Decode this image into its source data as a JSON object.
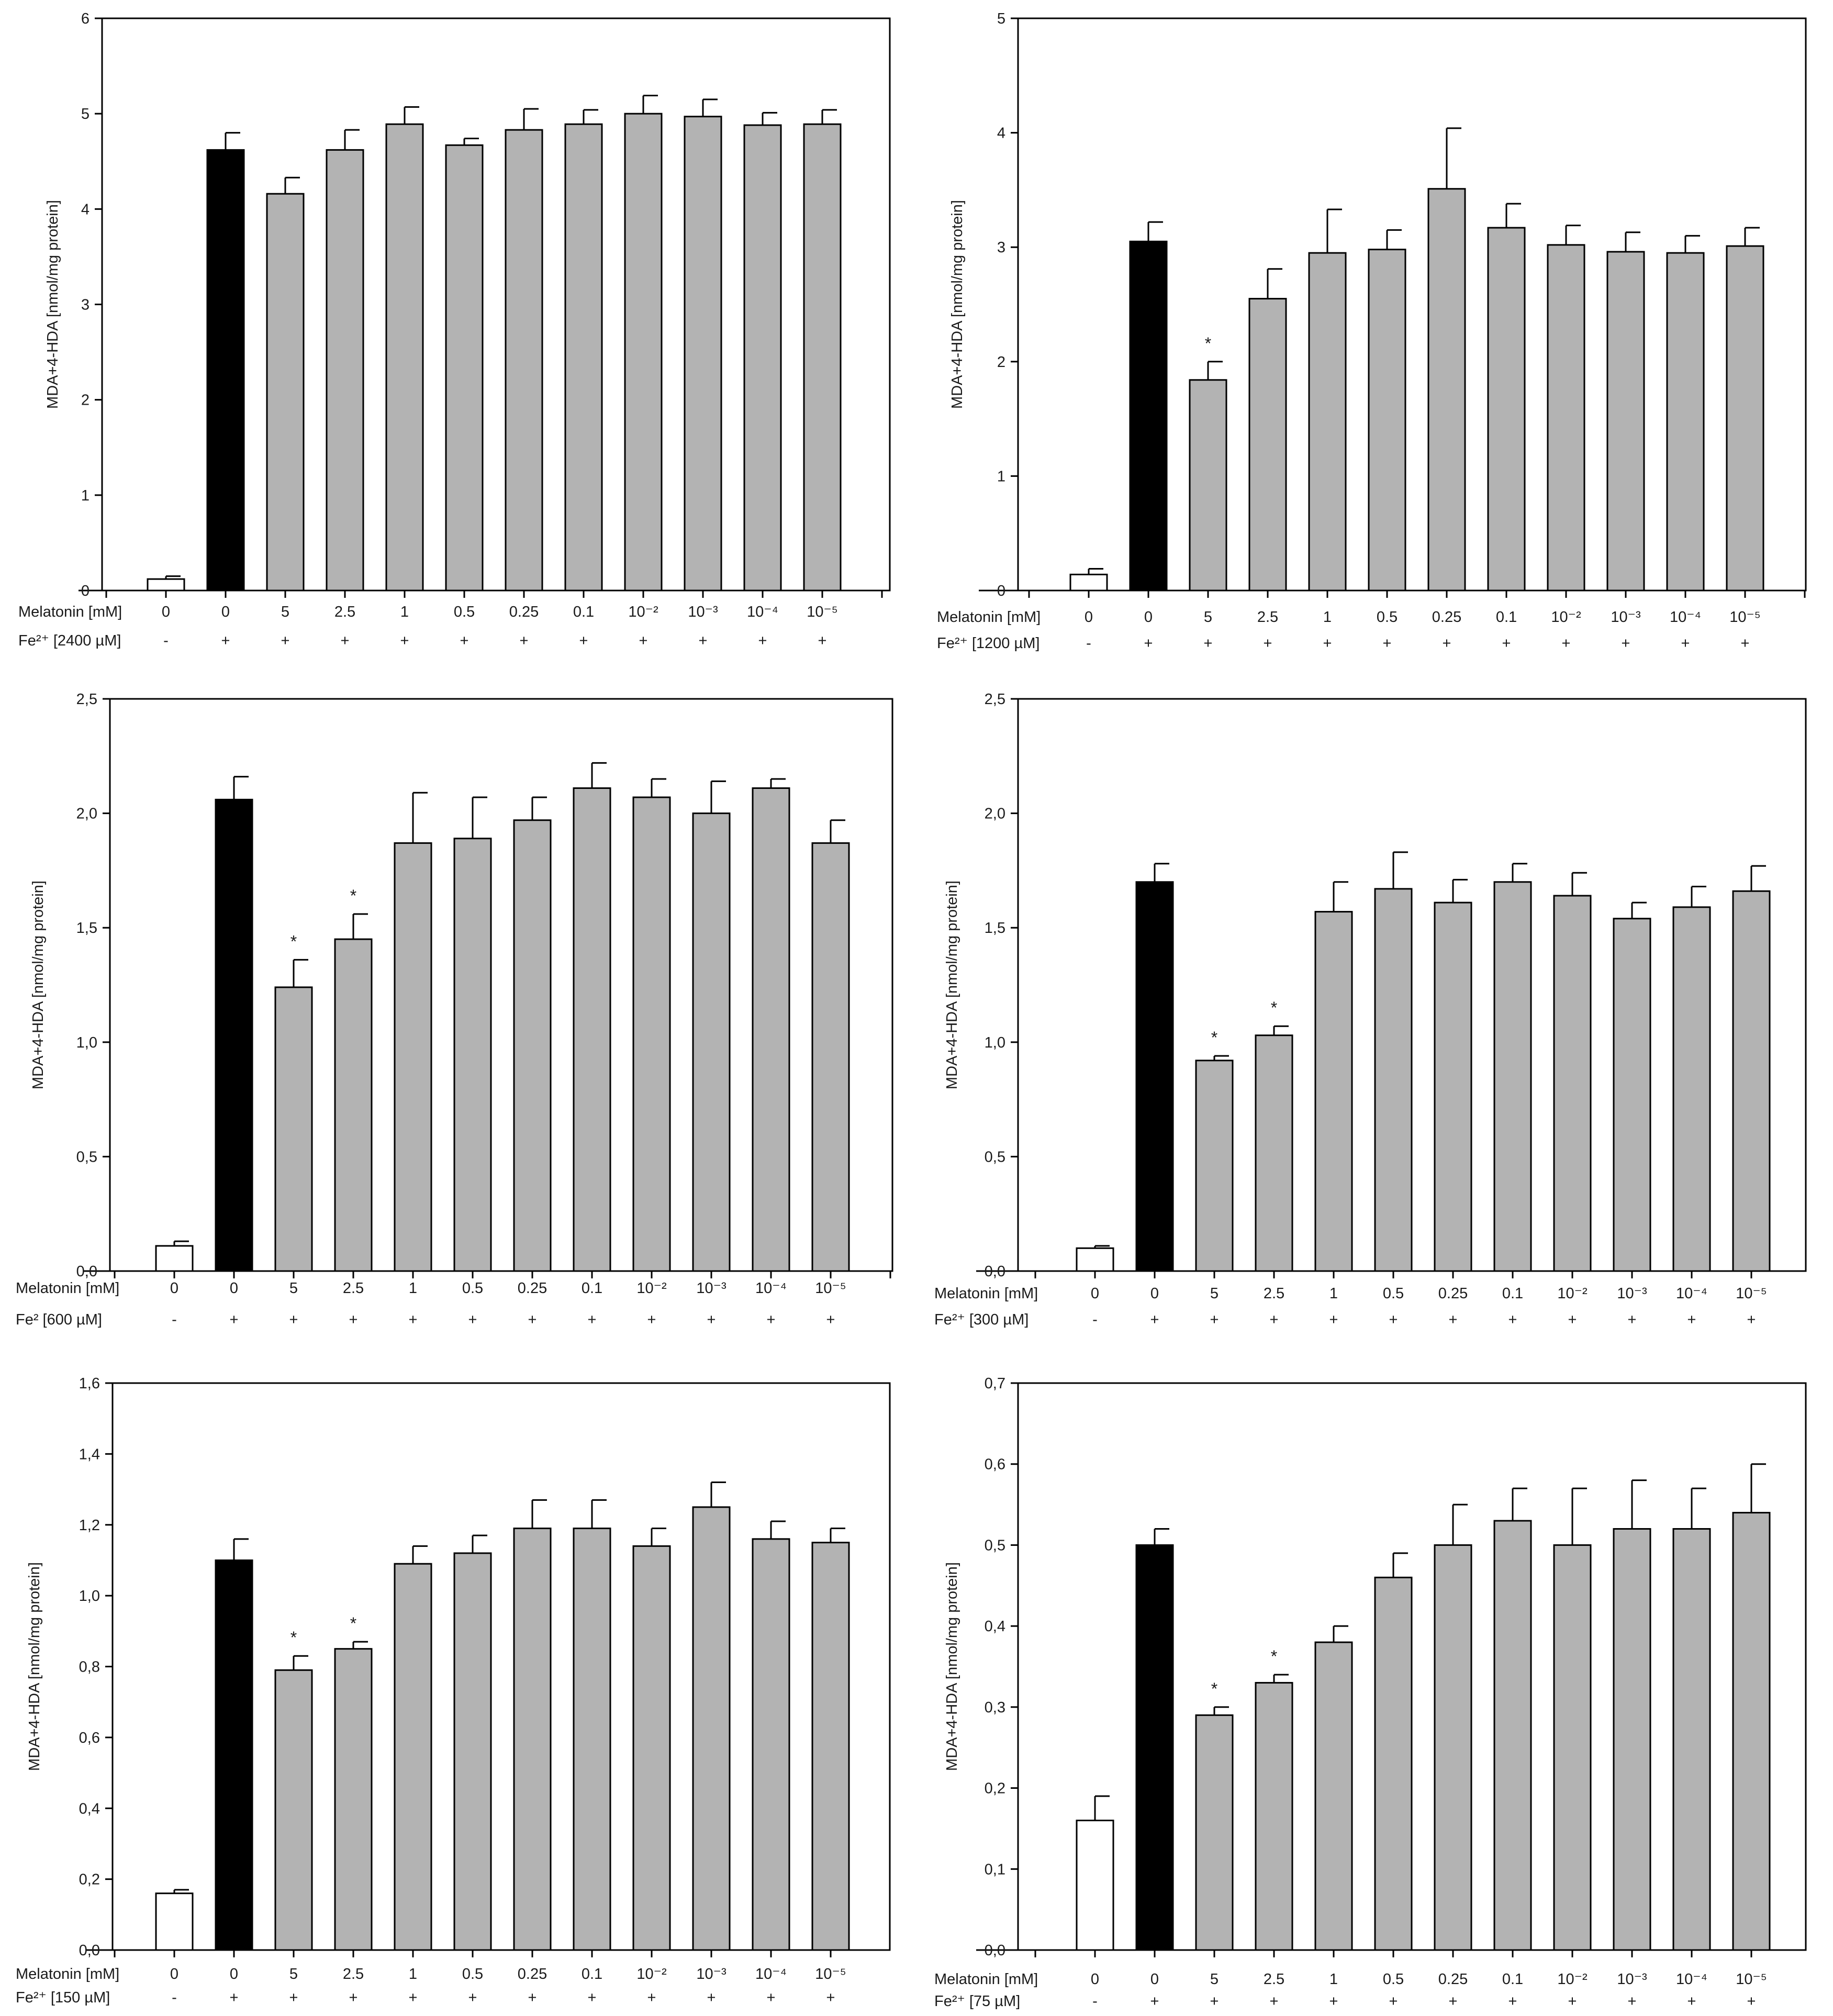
{
  "chart_data": [
    {
      "type": "bar",
      "ylabel": "MDA+4-HDA [nmol/mg protein]",
      "ylim": [
        0,
        6
      ],
      "yticks": [
        "0",
        "1",
        "2",
        "3",
        "4",
        "5",
        "6"
      ],
      "row1_label": "Melatonin [mM]",
      "row2_label": "Fe²⁺ [2400 µM]",
      "categories": [
        "0",
        "0",
        "5",
        "2.5",
        "1",
        "0.5",
        "0.25",
        "0.1",
        "10⁻²",
        "10⁻³",
        "10⁻⁴",
        "10⁻⁵"
      ],
      "fe_present": [
        "-",
        "+",
        "+",
        "+",
        "+",
        "+",
        "+",
        "+",
        "+",
        "+",
        "+",
        "+"
      ],
      "values": [
        0.12,
        4.62,
        4.16,
        4.62,
        4.89,
        4.67,
        4.83,
        4.89,
        5.0,
        4.97,
        4.88,
        4.89
      ],
      "errors": [
        0.03,
        0.18,
        0.17,
        0.21,
        0.18,
        0.07,
        0.22,
        0.15,
        0.19,
        0.18,
        0.13,
        0.15
      ],
      "significance": [
        "",
        "",
        "",
        "",
        "",
        "",
        "",
        "",
        "",
        "",
        "",
        ""
      ],
      "bar_colors": [
        "#ffffff",
        "#000000",
        "#b3b3b3",
        "#b3b3b3",
        "#b3b3b3",
        "#b3b3b3",
        "#b3b3b3",
        "#b3b3b3",
        "#b3b3b3",
        "#b3b3b3",
        "#b3b3b3",
        "#b3b3b3"
      ]
    },
    {
      "type": "bar",
      "ylabel": "MDA+4-HDA [nmol/mg protein]",
      "ylim": [
        0,
        5
      ],
      "yticks": [
        "0",
        "1",
        "2",
        "3",
        "4",
        "5"
      ],
      "row1_label": "Melatonin [mM]",
      "row2_label": "Fe²⁺ [1200 µM]",
      "categories": [
        "0",
        "0",
        "5",
        "2.5",
        "1",
        "0.5",
        "0.25",
        "0.1",
        "10⁻²",
        "10⁻³",
        "10⁻⁴",
        "10⁻⁵"
      ],
      "fe_present": [
        "-",
        "+",
        "+",
        "+",
        "+",
        "+",
        "+",
        "+",
        "+",
        "+",
        "+",
        "+"
      ],
      "values": [
        0.14,
        3.05,
        1.84,
        2.55,
        2.95,
        2.98,
        3.51,
        3.17,
        3.02,
        2.96,
        2.95,
        3.01
      ],
      "errors": [
        0.05,
        0.17,
        0.16,
        0.26,
        0.38,
        0.17,
        0.53,
        0.21,
        0.17,
        0.17,
        0.15,
        0.16
      ],
      "significance": [
        "",
        "",
        "*",
        "",
        "",
        "",
        "",
        "",
        "",
        "",
        "",
        ""
      ],
      "bar_colors": [
        "#ffffff",
        "#000000",
        "#b3b3b3",
        "#b3b3b3",
        "#b3b3b3",
        "#b3b3b3",
        "#b3b3b3",
        "#b3b3b3",
        "#b3b3b3",
        "#b3b3b3",
        "#b3b3b3",
        "#b3b3b3"
      ]
    },
    {
      "type": "bar",
      "ylabel": "MDA+4-HDA [nmol/mg protein]",
      "ylim": [
        0,
        2.5
      ],
      "yticks": [
        "0,0",
        "0,5",
        "1,0",
        "1,5",
        "2,0",
        "2,5"
      ],
      "row1_label": "Melatonin [mM]",
      "row2_label": "Fe² [600 µM]",
      "categories": [
        "0",
        "0",
        "5",
        "2.5",
        "1",
        "0.5",
        "0.25",
        "0.1",
        "10⁻²",
        "10⁻³",
        "10⁻⁴",
        "10⁻⁵"
      ],
      "fe_present": [
        "-",
        "+",
        "+",
        "+",
        "+",
        "+",
        "+",
        "+",
        "+",
        "+",
        "+",
        "+"
      ],
      "values": [
        0.11,
        2.06,
        1.24,
        1.45,
        1.87,
        1.89,
        1.97,
        2.11,
        2.07,
        2.0,
        2.11,
        1.87
      ],
      "errors": [
        0.02,
        0.1,
        0.12,
        0.11,
        0.22,
        0.18,
        0.1,
        0.11,
        0.08,
        0.14,
        0.04,
        0.1
      ],
      "significance": [
        "",
        "",
        "*",
        "*",
        "",
        "",
        "",
        "",
        "",
        "",
        "",
        ""
      ],
      "bar_colors": [
        "#ffffff",
        "#000000",
        "#b3b3b3",
        "#b3b3b3",
        "#b3b3b3",
        "#b3b3b3",
        "#b3b3b3",
        "#b3b3b3",
        "#b3b3b3",
        "#b3b3b3",
        "#b3b3b3",
        "#b3b3b3"
      ]
    },
    {
      "type": "bar",
      "ylabel": "MDA+4-HDA [nmol/mg protein]",
      "ylim": [
        0,
        2.5
      ],
      "yticks": [
        "0,0",
        "0,5",
        "1,0",
        "1,5",
        "2,0",
        "2,5"
      ],
      "row1_label": "Melatonin [mM]",
      "row2_label": "Fe²⁺ [300 µM]",
      "categories": [
        "0",
        "0",
        "5",
        "2.5",
        "1",
        "0.5",
        "0.25",
        "0.1",
        "10⁻²",
        "10⁻³",
        "10⁻⁴",
        "10⁻⁵"
      ],
      "fe_present": [
        "-",
        "+",
        "+",
        "+",
        "+",
        "+",
        "+",
        "+",
        "+",
        "+",
        "+",
        "+"
      ],
      "values": [
        0.1,
        1.7,
        0.92,
        1.03,
        1.57,
        1.67,
        1.61,
        1.7,
        1.64,
        1.54,
        1.59,
        1.66
      ],
      "errors": [
        0.01,
        0.08,
        0.02,
        0.04,
        0.13,
        0.16,
        0.1,
        0.08,
        0.1,
        0.07,
        0.09,
        0.11
      ],
      "significance": [
        "",
        "",
        "*",
        "*",
        "",
        "",
        "",
        "",
        "",
        "",
        "",
        ""
      ],
      "bar_colors": [
        "#ffffff",
        "#000000",
        "#b3b3b3",
        "#b3b3b3",
        "#b3b3b3",
        "#b3b3b3",
        "#b3b3b3",
        "#b3b3b3",
        "#b3b3b3",
        "#b3b3b3",
        "#b3b3b3",
        "#b3b3b3"
      ]
    },
    {
      "type": "bar",
      "ylabel": "MDA+4-HDA [nmol/mg protein]",
      "ylim": [
        0,
        1.6
      ],
      "yticks": [
        "0,0",
        "0,2",
        "0,4",
        "0,6",
        "0,8",
        "1,0",
        "1,2",
        "1,4",
        "1,6"
      ],
      "row1_label": "Melatonin [mM]",
      "row2_label": "Fe²⁺ [150 µM]",
      "categories": [
        "0",
        "0",
        "5",
        "2.5",
        "1",
        "0.5",
        "0.25",
        "0.1",
        "10⁻²",
        "10⁻³",
        "10⁻⁴",
        "10⁻⁵"
      ],
      "fe_present": [
        "-",
        "+",
        "+",
        "+",
        "+",
        "+",
        "+",
        "+",
        "+",
        "+",
        "+",
        "+"
      ],
      "values": [
        0.16,
        1.1,
        0.79,
        0.85,
        1.09,
        1.12,
        1.19,
        1.19,
        1.14,
        1.25,
        1.16,
        1.15
      ],
      "errors": [
        0.01,
        0.06,
        0.04,
        0.02,
        0.05,
        0.05,
        0.08,
        0.08,
        0.05,
        0.07,
        0.05,
        0.04
      ],
      "significance": [
        "",
        "",
        "*",
        "*",
        "",
        "",
        "",
        "",
        "",
        "",
        "",
        ""
      ],
      "bar_colors": [
        "#ffffff",
        "#000000",
        "#b3b3b3",
        "#b3b3b3",
        "#b3b3b3",
        "#b3b3b3",
        "#b3b3b3",
        "#b3b3b3",
        "#b3b3b3",
        "#b3b3b3",
        "#b3b3b3",
        "#b3b3b3"
      ]
    },
    {
      "type": "bar",
      "ylabel": "MDA+4-HDA [nmol/mg protein]",
      "ylim": [
        0,
        0.7
      ],
      "yticks": [
        "0,0",
        "0,1",
        "0,2",
        "0,3",
        "0,4",
        "0,5",
        "0,6",
        "0,7"
      ],
      "row1_label": "Melatonin [mM]",
      "row2_label": "Fe²⁺ [75 µM]",
      "categories": [
        "0",
        "0",
        "5",
        "2.5",
        "1",
        "0.5",
        "0.25",
        "0.1",
        "10⁻²",
        "10⁻³",
        "10⁻⁴",
        "10⁻⁵"
      ],
      "fe_present": [
        "-",
        "+",
        "+",
        "+",
        "+",
        "+",
        "+",
        "+",
        "+",
        "+",
        "+",
        "+"
      ],
      "values": [
        0.16,
        0.5,
        0.29,
        0.33,
        0.38,
        0.46,
        0.5,
        0.53,
        0.5,
        0.52,
        0.52,
        0.54
      ],
      "errors": [
        0.03,
        0.02,
        0.01,
        0.01,
        0.02,
        0.03,
        0.05,
        0.04,
        0.07,
        0.06,
        0.05,
        0.06
      ],
      "significance": [
        "",
        "",
        "*",
        "*",
        "",
        "",
        "",
        "",
        "",
        "",
        "",
        ""
      ],
      "bar_colors": [
        "#ffffff",
        "#000000",
        "#b3b3b3",
        "#b3b3b3",
        "#b3b3b3",
        "#b3b3b3",
        "#b3b3b3",
        "#b3b3b3",
        "#b3b3b3",
        "#b3b3b3",
        "#b3b3b3",
        "#b3b3b3"
      ]
    }
  ]
}
